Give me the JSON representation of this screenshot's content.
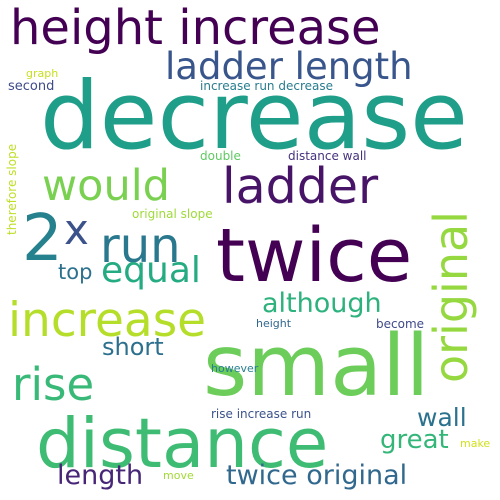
{
  "words": [
    {
      "text": "height increase",
      "color": "#440154"
    },
    {
      "text": "ladder length",
      "color": "#39568c"
    },
    {
      "text": "decrease",
      "color": "#1f9e89"
    },
    {
      "text": "would",
      "color": "#7ad151"
    },
    {
      "text": "ladder",
      "color": "#481467"
    },
    {
      "text": "original",
      "color": "#95d840"
    },
    {
      "text": "2",
      "color": "#26818e"
    },
    {
      "text": "x",
      "color": "#3b528b"
    },
    {
      "text": "run",
      "color": "#2a788e"
    },
    {
      "text": "twice",
      "color": "#440154"
    },
    {
      "text": "equal",
      "color": "#25ab82"
    },
    {
      "text": "top",
      "color": "#2c728e"
    },
    {
      "text": "although",
      "color": "#2db27d"
    },
    {
      "text": "increase",
      "color": "#b5de2b"
    },
    {
      "text": "short",
      "color": "#2d708e"
    },
    {
      "text": "small",
      "color": "#6ccd5a"
    },
    {
      "text": "rise",
      "color": "#38b977"
    },
    {
      "text": "distance",
      "color": "#3fbc73"
    },
    {
      "text": "wall",
      "color": "#2c728e"
    },
    {
      "text": "great",
      "color": "#34b679"
    },
    {
      "text": "length",
      "color": "#482677"
    },
    {
      "text": "twice original",
      "color": "#31688e"
    },
    {
      "text": "graph",
      "color": "#c8e020"
    },
    {
      "text": "second",
      "color": "#3e4a89"
    },
    {
      "text": "increase run decrease",
      "color": "#287c8e"
    },
    {
      "text": "therefore slope",
      "color": "#bddf26"
    },
    {
      "text": "double",
      "color": "#5ec962"
    },
    {
      "text": "distance wall",
      "color": "#46327e"
    },
    {
      "text": "original slope",
      "color": "#9fda3a"
    },
    {
      "text": "height",
      "color": "#31688e"
    },
    {
      "text": "become",
      "color": "#3e4989"
    },
    {
      "text": "however",
      "color": "#277f8e"
    },
    {
      "text": "rise increase run",
      "color": "#3b528b"
    },
    {
      "text": "make",
      "color": "#d0e11c"
    },
    {
      "text": "move",
      "color": "#a2da37"
    }
  ]
}
